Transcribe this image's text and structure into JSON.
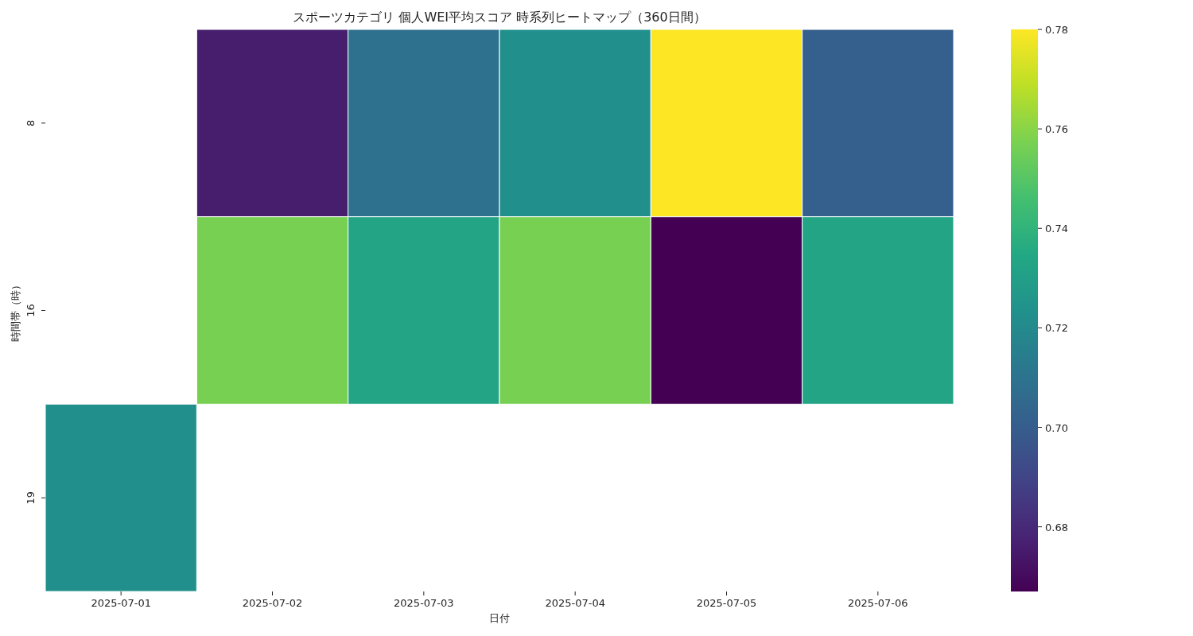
{
  "chart_data": {
    "type": "heatmap",
    "title": "スポーツカテゴリ 個人WEI平均スコア 時系列ヒートマップ（360日間）",
    "xlabel": "日付",
    "ylabel": "時間帯（時）",
    "categories": [
      "2025-07-01",
      "2025-07-02",
      "2025-07-03",
      "2025-07-04",
      "2025-07-05",
      "2025-07-06"
    ],
    "y_categories": [
      "8",
      "16",
      "19"
    ],
    "cells": [
      [
        null,
        0.676,
        0.709,
        0.723,
        0.78,
        0.701
      ],
      [
        null,
        0.757,
        0.733,
        0.757,
        0.667,
        0.733
      ],
      [
        0.723,
        null,
        null,
        null,
        null,
        null
      ]
    ],
    "clim": [
      0.667,
      0.78
    ],
    "cticks": [
      {
        "value": 0.68,
        "label": "0.68"
      },
      {
        "value": 0.7,
        "label": "0.70"
      },
      {
        "value": 0.72,
        "label": "0.72"
      },
      {
        "value": 0.74,
        "label": "0.74"
      },
      {
        "value": 0.76,
        "label": "0.76"
      },
      {
        "value": 0.78,
        "label": "0.78"
      }
    ]
  }
}
